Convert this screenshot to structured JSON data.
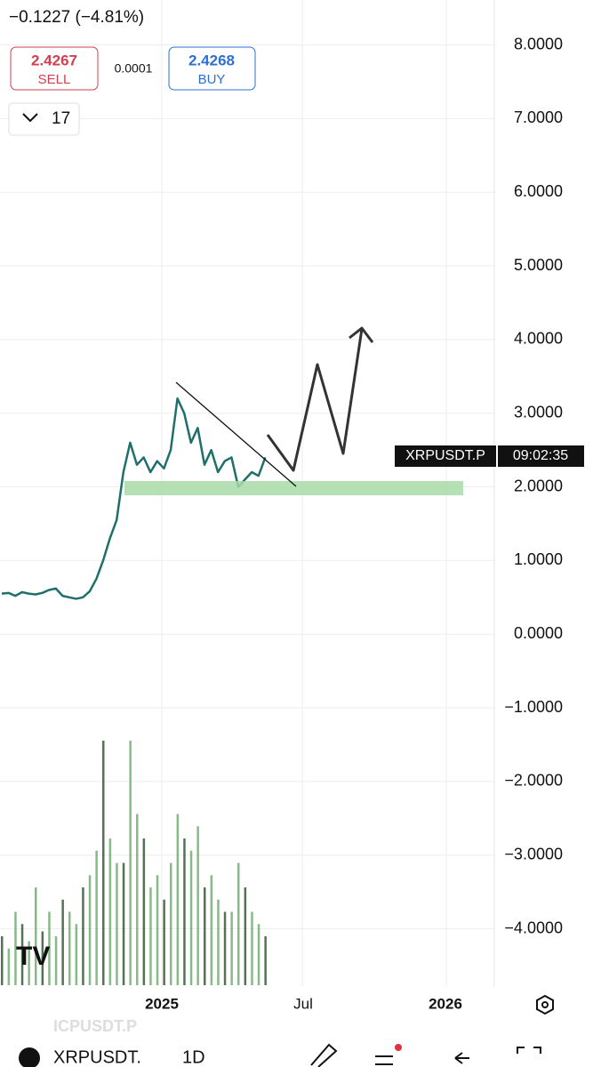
{
  "header": {
    "change": "−0.1227 (−4.81%)",
    "sell_price": "2.4267",
    "sell_label": "SELL",
    "spread": "0.0001",
    "buy_price": "2.4268",
    "buy_label": "BUY",
    "interval_count": "17"
  },
  "chart_data": {
    "type": "line",
    "color": "#1f6f6a",
    "values": [
      0.55,
      0.56,
      0.52,
      0.57,
      0.55,
      0.54,
      0.56,
      0.6,
      0.62,
      0.52,
      0.5,
      0.48,
      0.5,
      0.58,
      0.75,
      1.0,
      1.3,
      1.55,
      2.2,
      2.6,
      2.3,
      2.4,
      2.2,
      2.35,
      2.25,
      2.5,
      3.2,
      3.0,
      2.6,
      2.8,
      2.3,
      2.5,
      2.2,
      2.35,
      2.4,
      2.0,
      2.1,
      2.2,
      2.15,
      2.4
    ],
    "volume": [
      20,
      15,
      30,
      25,
      18,
      40,
      22,
      30,
      20,
      35,
      30,
      25,
      40,
      45,
      55,
      100,
      60,
      50,
      50,
      100,
      70,
      60,
      40,
      45,
      35,
      50,
      70,
      60,
      55,
      65,
      40,
      45,
      35,
      30,
      30,
      50,
      40,
      30,
      25,
      20
    ],
    "ylim": [
      -4.79,
      8.61
    ],
    "yticks": [
      {
        "value": 8,
        "label": "8.0000"
      },
      {
        "value": 7,
        "label": "7.0000"
      },
      {
        "value": 6,
        "label": "6.0000"
      },
      {
        "value": 5,
        "label": "5.0000"
      },
      {
        "value": 4,
        "label": "4.0000"
      },
      {
        "value": 3,
        "label": "3.0000"
      },
      {
        "value": 2,
        "label": "2.0000"
      },
      {
        "value": 1,
        "label": "1.0000"
      },
      {
        "value": 0,
        "label": "0.0000"
      },
      {
        "value": -1,
        "label": "−1.0000"
      },
      {
        "value": -2,
        "label": "−2.0000"
      },
      {
        "value": -3,
        "label": "−3.0000"
      },
      {
        "value": -4,
        "label": "−4.0000"
      }
    ],
    "x_labels": [
      "2025",
      "Jul",
      "2026"
    ],
    "symbol_label": "XRPUSDT.P",
    "countdown": "09:02:35",
    "grid": true
  },
  "footer": {
    "watermark": "ICPUSDT.P",
    "symbol": "XRPUSDT.",
    "interval": "1D"
  }
}
